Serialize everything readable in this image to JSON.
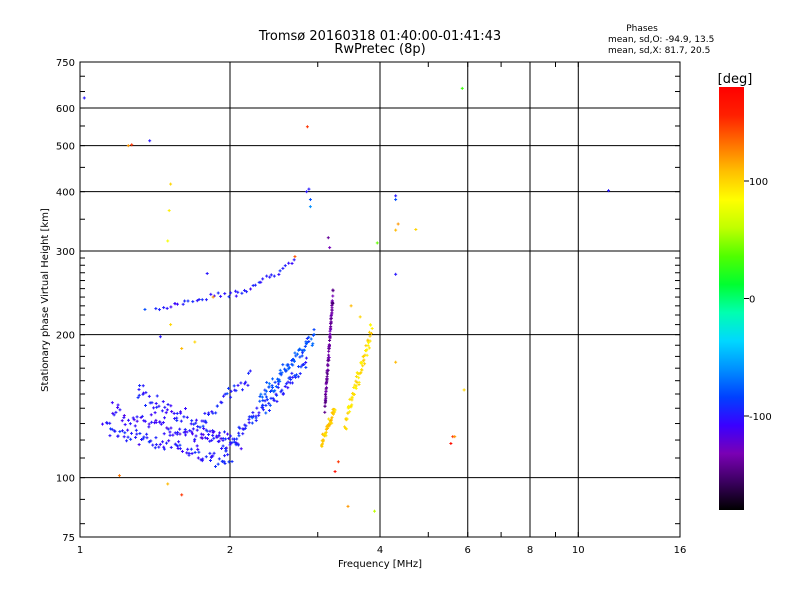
{
  "chart_data": {
    "type": "scatter",
    "title": "Tromsø 20160318 01:40:00-01:41:43",
    "subtitle": "RwPretec (8p)",
    "xlabel": "Frequency [MHz]",
    "ylabel": "Stationary phase Virtual Height [km]",
    "x_scale": "log",
    "y_scale": "log",
    "xlim": [
      1,
      16
    ],
    "ylim": [
      75,
      750
    ],
    "x_ticks": [
      1,
      2,
      4,
      6,
      8,
      10,
      16
    ],
    "y_ticks": [
      75,
      100,
      200,
      300,
      400,
      500,
      600,
      750
    ],
    "grid": true,
    "stats": {
      "heading": "Phases",
      "line_o": "mean, sd,O: -94.9, 13.5",
      "line_x": "mean, sd,X:  81.7, 20.5"
    },
    "colorbar": {
      "label": "[deg]",
      "range": [
        -180,
        180
      ],
      "ticks": [
        100,
        0,
        -100
      ],
      "colors": [
        "#000000",
        "#3b0060",
        "#7a00b4",
        "#3a00ff",
        "#0040ff",
        "#0090ff",
        "#00d8ff",
        "#00ffb0",
        "#00ff30",
        "#50ff00",
        "#c0ff00",
        "#ffff00",
        "#ffc000",
        "#ff7000",
        "#ff2000",
        "#ff0000"
      ]
    },
    "series": [
      {
        "traces": [
          {
            "f0": 1.12,
            "f1": 2.0,
            "h0": 128,
            "h1": 108,
            "n": 85,
            "phase": -100,
            "spread": 0.06
          },
          {
            "f0": 1.15,
            "f1": 2.1,
            "h0": 138,
            "h1": 116,
            "n": 80,
            "phase": -105,
            "spread": 0.06
          },
          {
            "f0": 1.3,
            "f1": 2.0,
            "h0": 150,
            "h1": 118,
            "n": 70,
            "phase": -100,
            "spread": 0.07
          },
          {
            "f0": 2.0,
            "f1": 2.85,
            "h0": 118,
            "h1": 175,
            "n": 80,
            "phase": -95,
            "spread": 0.05
          },
          {
            "f0": 2.3,
            "f1": 2.95,
            "h0": 145,
            "h1": 200,
            "n": 75,
            "phase": -80,
            "spread": 0.06
          },
          {
            "f0": 1.75,
            "f1": 2.2,
            "h0": 130,
            "h1": 165,
            "n": 30,
            "phase": -95,
            "spread": 0.05
          },
          {
            "f0": 1.55,
            "f1": 2.05,
            "h0": 232,
            "h1": 245,
            "n": 18,
            "phase": -100,
            "spread": 0.02
          },
          {
            "f0": 2.05,
            "f1": 2.7,
            "h0": 240,
            "h1": 285,
            "n": 22,
            "phase": -100,
            "spread": 0.02
          },
          {
            "f0": 3.1,
            "f1": 3.22,
            "h0": 140,
            "h1": 245,
            "n": 90,
            "phase": -140,
            "spread": 0.05
          },
          {
            "f0": 3.05,
            "f1": 3.25,
            "h0": 118,
            "h1": 140,
            "n": 50,
            "phase": 105,
            "spread": 0.04
          },
          {
            "f0": 3.4,
            "f1": 3.85,
            "h0": 128,
            "h1": 205,
            "n": 70,
            "phase": 95,
            "spread": 0.06
          },
          {
            "f0": 1.42,
            "f1": 1.55,
            "h0": 225,
            "h1": 232,
            "n": 6,
            "phase": -100,
            "spread": 0.02
          }
        ],
        "points": [
          {
            "x": 1.02,
            "y": 630,
            "phase": -100
          },
          {
            "x": 1.25,
            "y": 500,
            "phase": 120
          },
          {
            "x": 1.27,
            "y": 502,
            "phase": 150
          },
          {
            "x": 1.38,
            "y": 512,
            "phase": -100
          },
          {
            "x": 1.52,
            "y": 415,
            "phase": 100
          },
          {
            "x": 1.51,
            "y": 365,
            "phase": 90
          },
          {
            "x": 1.5,
            "y": 315,
            "phase": 80
          },
          {
            "x": 2.86,
            "y": 548,
            "phase": 150
          },
          {
            "x": 2.85,
            "y": 400,
            "phase": -100
          },
          {
            "x": 2.88,
            "y": 405,
            "phase": -100
          },
          {
            "x": 2.9,
            "y": 385,
            "phase": -80
          },
          {
            "x": 2.9,
            "y": 372,
            "phase": -60
          },
          {
            "x": 3.15,
            "y": 320,
            "phase": -140
          },
          {
            "x": 3.17,
            "y": 305,
            "phase": -130
          },
          {
            "x": 4.3,
            "y": 392,
            "phase": -100
          },
          {
            "x": 4.3,
            "y": 385,
            "phase": -80
          },
          {
            "x": 4.35,
            "y": 342,
            "phase": 120
          },
          {
            "x": 4.3,
            "y": 332,
            "phase": 110
          },
          {
            "x": 4.72,
            "y": 333,
            "phase": 100
          },
          {
            "x": 3.95,
            "y": 312,
            "phase": 40
          },
          {
            "x": 4.3,
            "y": 268,
            "phase": -100
          },
          {
            "x": 4.3,
            "y": 175,
            "phase": 110
          },
          {
            "x": 5.85,
            "y": 660,
            "phase": 30
          },
          {
            "x": 5.6,
            "y": 122,
            "phase": 150
          },
          {
            "x": 5.55,
            "y": 118,
            "phase": 170
          },
          {
            "x": 5.65,
            "y": 122,
            "phase": 120
          },
          {
            "x": 5.9,
            "y": 153,
            "phase": 100
          },
          {
            "x": 11.5,
            "y": 402,
            "phase": -100
          },
          {
            "x": 1.6,
            "y": 92,
            "phase": 150
          },
          {
            "x": 3.45,
            "y": 87,
            "phase": 120
          },
          {
            "x": 3.9,
            "y": 85,
            "phase": 60
          },
          {
            "x": 1.5,
            "y": 97,
            "phase": 110
          },
          {
            "x": 1.2,
            "y": 101,
            "phase": 130
          },
          {
            "x": 3.25,
            "y": 103,
            "phase": 170
          },
          {
            "x": 3.3,
            "y": 108,
            "phase": 150
          },
          {
            "x": 1.85,
            "y": 240,
            "phase": 120
          },
          {
            "x": 1.35,
            "y": 226,
            "phase": -80
          },
          {
            "x": 1.52,
            "y": 210,
            "phase": 100
          },
          {
            "x": 1.45,
            "y": 198,
            "phase": -100
          },
          {
            "x": 1.6,
            "y": 187,
            "phase": 110
          },
          {
            "x": 1.7,
            "y": 193,
            "phase": 100
          },
          {
            "x": 1.8,
            "y": 269,
            "phase": -100
          },
          {
            "x": 2.7,
            "y": 292,
            "phase": 140
          },
          {
            "x": 3.5,
            "y": 230,
            "phase": 110
          },
          {
            "x": 3.65,
            "y": 218,
            "phase": 100
          }
        ]
      }
    ]
  }
}
